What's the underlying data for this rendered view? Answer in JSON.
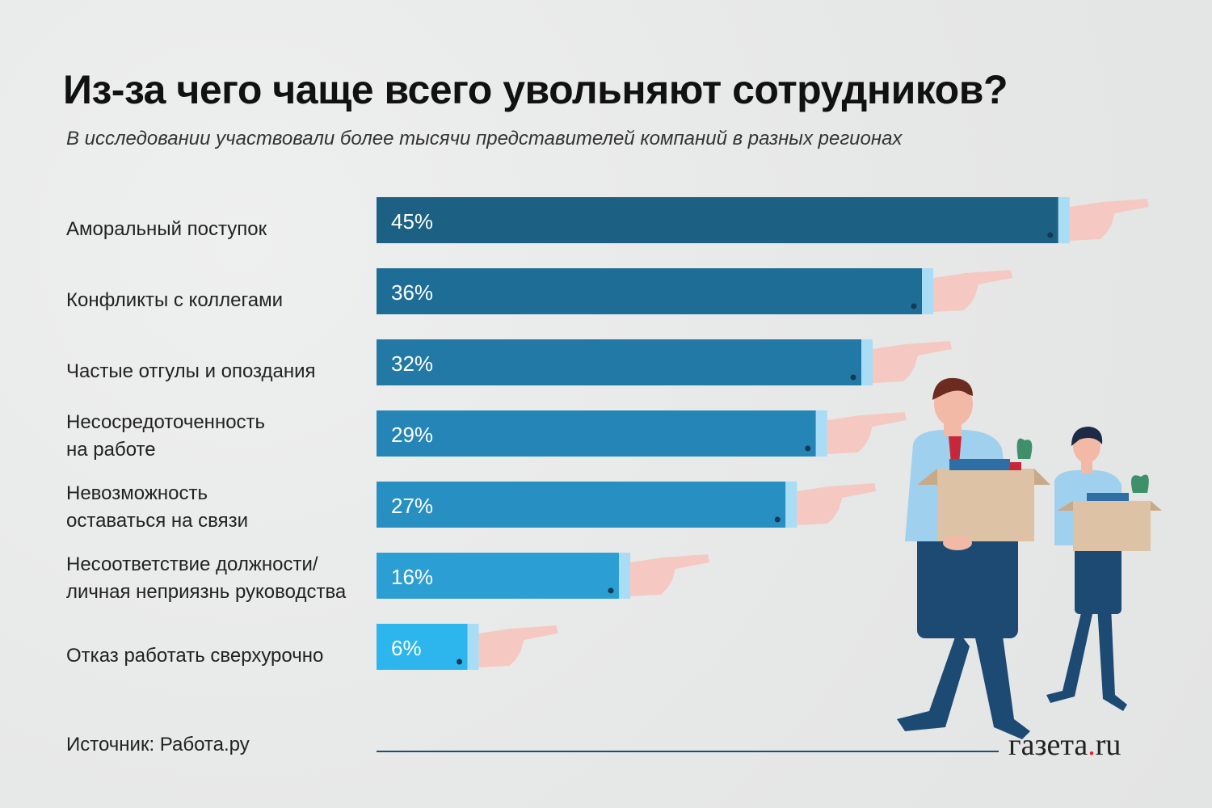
{
  "header": {
    "title": "Из-за чего чаще всего увольняют сотрудников?",
    "subtitle": "В исследовании участвовали более тысячи представителей компаний в разных регионах"
  },
  "chart_data": {
    "type": "bar",
    "orientation": "horizontal",
    "categories": [
      [
        "Аморальный поступок"
      ],
      [
        "Конфликты с коллегами"
      ],
      [
        "Частые отгулы и опоздания"
      ],
      [
        "Несосредоточенность",
        "на работе"
      ],
      [
        "Невозможность",
        "оставаться на связи"
      ],
      [
        "Несоответствие должности/",
        "личная неприязнь руководства"
      ],
      [
        "Отказ работать сверхурочно"
      ]
    ],
    "values": [
      45,
      36,
      32,
      29,
      27,
      16,
      6
    ],
    "value_labels": [
      "45%",
      "36%",
      "32%",
      "29%",
      "27%",
      "16%",
      "6%"
    ],
    "bar_colors": [
      "#1c6184",
      "#1e6d97",
      "#2279a6",
      "#2585b6",
      "#288fc2",
      "#2b9ed4",
      "#2db6ee"
    ],
    "unit": "%"
  },
  "footer": {
    "source": "Источник: Работа.ру",
    "logo_main": "газета",
    "logo_dot": ".",
    "logo_suffix": "ru"
  },
  "illustration": {
    "name": "two-employees-carrying-boxes"
  }
}
